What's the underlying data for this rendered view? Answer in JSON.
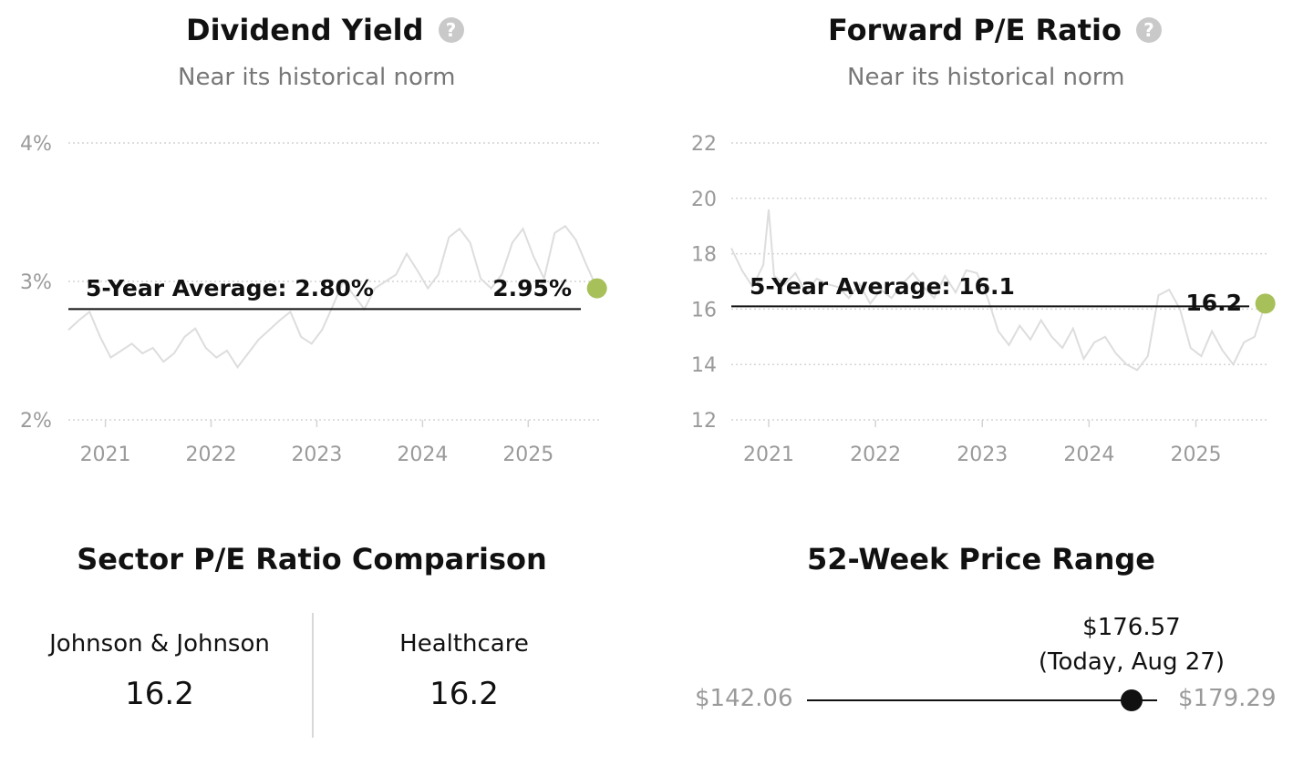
{
  "dividend": {
    "title": "Dividend Yield",
    "subtitle": "Near its historical norm",
    "avg_label": "5-Year Average: 2.80%",
    "current_label": "2.95%"
  },
  "forward_pe": {
    "title": "Forward P/E Ratio",
    "subtitle": "Near its historical norm",
    "avg_label": "5-Year Average: 16.1",
    "current_label": "16.2"
  },
  "sector": {
    "title": "Sector P/E Ratio Comparison",
    "company_name": "Johnson & Johnson",
    "company_value": "16.2",
    "sector_name": "Healthcare",
    "sector_value": "16.2"
  },
  "price_range": {
    "title": "52-Week Price Range",
    "low_label": "$142.06",
    "high_label": "$179.29",
    "current_price": "$176.57",
    "current_note": "(Today, Aug 27)",
    "low": 142.06,
    "high": 179.29,
    "current": 176.57
  },
  "colors": {
    "series": "#dddddd",
    "average_line": "#111111",
    "current_marker": "#a8c05a",
    "grid": "#d4d4d4",
    "tick_text": "#9a9a9a",
    "help_icon": "#c9c9c9"
  },
  "icons": {
    "help": "question-circle-icon"
  },
  "chart_data": [
    {
      "type": "line",
      "title": "Dividend Yield",
      "xlabel": "",
      "ylabel": "",
      "ylim": [
        2,
        4
      ],
      "y_ticks": [
        2,
        3,
        4
      ],
      "y_tick_labels": [
        "2%",
        "3%",
        "4%"
      ],
      "x_ticks": [
        2021,
        2022,
        2023,
        2024,
        2025
      ],
      "x_tick_labels": [
        "2021",
        "2022",
        "2023",
        "2024",
        "2025"
      ],
      "xlim": [
        2020.65,
        2025.67
      ],
      "average": 2.8,
      "current": {
        "x": 2025.65,
        "y": 2.95
      },
      "grid": true,
      "series": [
        {
          "x": [
            2020.65,
            2020.75,
            2020.85,
            2020.95,
            2021.05,
            2021.15,
            2021.25,
            2021.35,
            2021.45,
            2021.55,
            2021.65,
            2021.75,
            2021.85,
            2021.95,
            2022.05,
            2022.15,
            2022.25,
            2022.35,
            2022.45,
            2022.55,
            2022.65,
            2022.75,
            2022.85,
            2022.95,
            2023.05,
            2023.15,
            2023.25,
            2023.35,
            2023.45,
            2023.55,
            2023.65,
            2023.75,
            2023.85,
            2023.95,
            2024.05,
            2024.15,
            2024.25,
            2024.35,
            2024.45,
            2024.55,
            2024.65,
            2024.75,
            2024.85,
            2024.95,
            2025.05,
            2025.15,
            2025.25,
            2025.35,
            2025.45,
            2025.55,
            2025.65
          ],
          "values": [
            2.65,
            2.72,
            2.78,
            2.6,
            2.45,
            2.5,
            2.55,
            2.48,
            2.52,
            2.42,
            2.48,
            2.6,
            2.66,
            2.52,
            2.45,
            2.5,
            2.38,
            2.48,
            2.58,
            2.65,
            2.72,
            2.78,
            2.6,
            2.55,
            2.65,
            2.82,
            3.0,
            2.9,
            2.8,
            2.95,
            3.0,
            3.05,
            3.2,
            3.08,
            2.95,
            3.05,
            3.32,
            3.38,
            3.28,
            3.02,
            2.95,
            3.05,
            3.28,
            3.38,
            3.18,
            3.02,
            3.35,
            3.4,
            3.3,
            3.12,
            2.95
          ]
        }
      ]
    },
    {
      "type": "line",
      "title": "Forward P/E Ratio",
      "xlabel": "",
      "ylabel": "",
      "ylim": [
        12,
        22
      ],
      "y_ticks": [
        12,
        14,
        16,
        18,
        20,
        22
      ],
      "y_tick_labels": [
        "12",
        "14",
        "16",
        "18",
        "20",
        "22"
      ],
      "x_ticks": [
        2021,
        2022,
        2023,
        2024,
        2025
      ],
      "x_tick_labels": [
        "2021",
        "2022",
        "2023",
        "2024",
        "2025"
      ],
      "xlim": [
        2020.65,
        2025.67
      ],
      "average": 16.1,
      "current": {
        "x": 2025.65,
        "y": 16.2
      },
      "grid": true,
      "series": [
        {
          "x": [
            2020.65,
            2020.75,
            2020.85,
            2020.95,
            2021.0,
            2021.05,
            2021.15,
            2021.25,
            2021.35,
            2021.45,
            2021.55,
            2021.65,
            2021.75,
            2021.85,
            2021.95,
            2022.05,
            2022.15,
            2022.25,
            2022.35,
            2022.45,
            2022.55,
            2022.65,
            2022.75,
            2022.85,
            2022.95,
            2023.05,
            2023.15,
            2023.25,
            2023.35,
            2023.45,
            2023.55,
            2023.65,
            2023.75,
            2023.85,
            2023.95,
            2024.05,
            2024.15,
            2024.25,
            2024.35,
            2024.45,
            2024.55,
            2024.65,
            2024.75,
            2024.85,
            2024.95,
            2025.05,
            2025.15,
            2025.25,
            2025.35,
            2025.45,
            2025.55,
            2025.65
          ],
          "values": [
            18.2,
            17.4,
            16.8,
            17.6,
            19.6,
            17.2,
            16.9,
            17.3,
            16.6,
            17.1,
            16.9,
            16.8,
            16.4,
            16.9,
            16.2,
            16.7,
            16.4,
            16.9,
            17.3,
            16.8,
            16.4,
            17.2,
            16.6,
            17.4,
            17.3,
            16.4,
            15.2,
            14.7,
            15.4,
            14.9,
            15.6,
            15.0,
            14.6,
            15.3,
            14.2,
            14.8,
            15.0,
            14.4,
            14.0,
            13.8,
            14.3,
            16.5,
            16.7,
            16.0,
            14.6,
            14.3,
            15.2,
            14.5,
            14.0,
            14.8,
            15.0,
            16.2
          ]
        }
      ]
    }
  ]
}
